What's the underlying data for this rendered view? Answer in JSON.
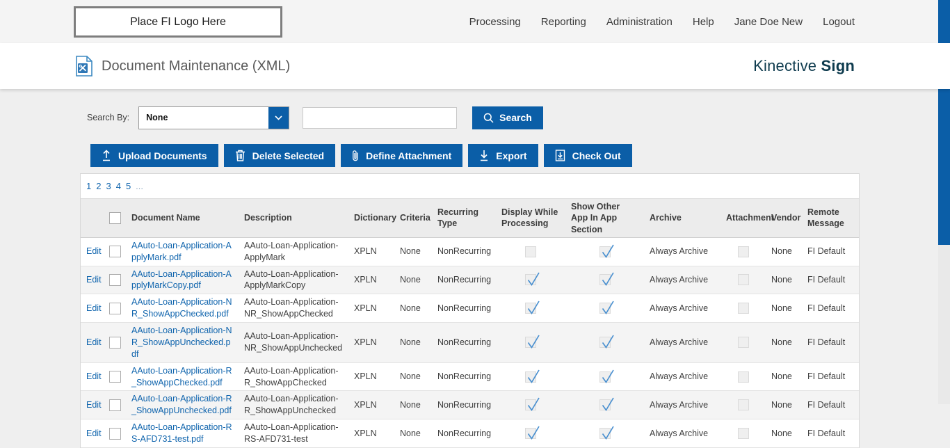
{
  "topbar": {
    "logo_text": "Place FI Logo Here",
    "nav": [
      {
        "label": "Processing"
      },
      {
        "label": "Reporting"
      },
      {
        "label": "Administration"
      },
      {
        "label": "Help"
      },
      {
        "label": "Jane Doe New"
      },
      {
        "label": "Logout"
      }
    ]
  },
  "header": {
    "title": "Document Maintenance (XML)",
    "brand_regular": "Kinective ",
    "brand_bold": "Sign"
  },
  "search": {
    "label": "Search By:",
    "selected_option": "None",
    "input_value": "",
    "input_placeholder": "",
    "button_label": "Search"
  },
  "actions": {
    "upload": "Upload Documents",
    "delete": "Delete Selected",
    "define_attachment": "Define Attachment",
    "export": "Export",
    "check_out": "Check Out"
  },
  "pagination": {
    "pages": [
      "1",
      "2",
      "3",
      "4",
      "5",
      "..."
    ]
  },
  "table": {
    "edit_label": "Edit",
    "columns": {
      "document_name": "Document Name",
      "description": "Description",
      "dictionary": "Dictionary",
      "criteria": "Criteria",
      "recurring_type": "Recurring Type",
      "display_while_processing": "Display While Processing",
      "show_other_app": "Show Other App In App Section",
      "archive": "Archive",
      "attachment": "Attachment",
      "vendor": "Vendor",
      "remote_message": "Remote Message"
    },
    "rows": [
      {
        "document_name": "AAuto-Loan-Application-ApplyMark.pdf",
        "description": "AAuto-Loan-Application-ApplyMark",
        "dictionary": "XPLN",
        "criteria": "None",
        "recurring_type": "NonRecurring",
        "display_while_processing": false,
        "show_other_app": true,
        "archive": "Always Archive",
        "attachment": false,
        "vendor": "None",
        "remote_message": "FI Default"
      },
      {
        "document_name": "AAuto-Loan-Application-ApplyMarkCopy.pdf",
        "description": "AAuto-Loan-Application-ApplyMarkCopy",
        "dictionary": "XPLN",
        "criteria": "None",
        "recurring_type": "NonRecurring",
        "display_while_processing": true,
        "show_other_app": true,
        "archive": "Always Archive",
        "attachment": false,
        "vendor": "None",
        "remote_message": "FI Default"
      },
      {
        "document_name": "AAuto-Loan-Application-NR_ShowAppChecked.pdf",
        "description": "AAuto-Loan-Application-NR_ShowAppChecked",
        "dictionary": "XPLN",
        "criteria": "None",
        "recurring_type": "NonRecurring",
        "display_while_processing": true,
        "show_other_app": true,
        "archive": "Always Archive",
        "attachment": false,
        "vendor": "None",
        "remote_message": "FI Default"
      },
      {
        "document_name": "AAuto-Loan-Application-NR_ShowAppUnchecked.pdf",
        "description": "AAuto-Loan-Application-NR_ShowAppUnchecked",
        "dictionary": "XPLN",
        "criteria": "None",
        "recurring_type": "NonRecurring",
        "display_while_processing": true,
        "show_other_app": true,
        "archive": "Always Archive",
        "attachment": false,
        "vendor": "None",
        "remote_message": "FI Default"
      },
      {
        "document_name": "AAuto-Loan-Application-R_ShowAppChecked.pdf",
        "description": "AAuto-Loan-Application-R_ShowAppChecked",
        "dictionary": "XPLN",
        "criteria": "None",
        "recurring_type": "NonRecurring",
        "display_while_processing": true,
        "show_other_app": true,
        "archive": "Always Archive",
        "attachment": false,
        "vendor": "None",
        "remote_message": "FI Default"
      },
      {
        "document_name": "AAuto-Loan-Application-R_ShowAppUnchecked.pdf",
        "description": "AAuto-Loan-Application-R_ShowAppUnchecked",
        "dictionary": "XPLN",
        "criteria": "None",
        "recurring_type": "NonRecurring",
        "display_while_processing": true,
        "show_other_app": true,
        "archive": "Always Archive",
        "attachment": false,
        "vendor": "None",
        "remote_message": "FI Default"
      },
      {
        "document_name": "AAuto-Loan-Application-RS-AFD731-test.pdf",
        "description": "AAuto-Loan-Application-RS-AFD731-test",
        "dictionary": "XPLN",
        "criteria": "None",
        "recurring_type": "NonRecurring",
        "display_while_processing": true,
        "show_other_app": true,
        "archive": "Always Archive",
        "attachment": false,
        "vendor": "None",
        "remote_message": "FI Default"
      }
    ]
  },
  "colors": {
    "primary_blue": "#0b5ea7",
    "check_blue": "#4a90d0",
    "link_blue": "#0f64ad",
    "brand_teal": "#0e3b4e"
  }
}
